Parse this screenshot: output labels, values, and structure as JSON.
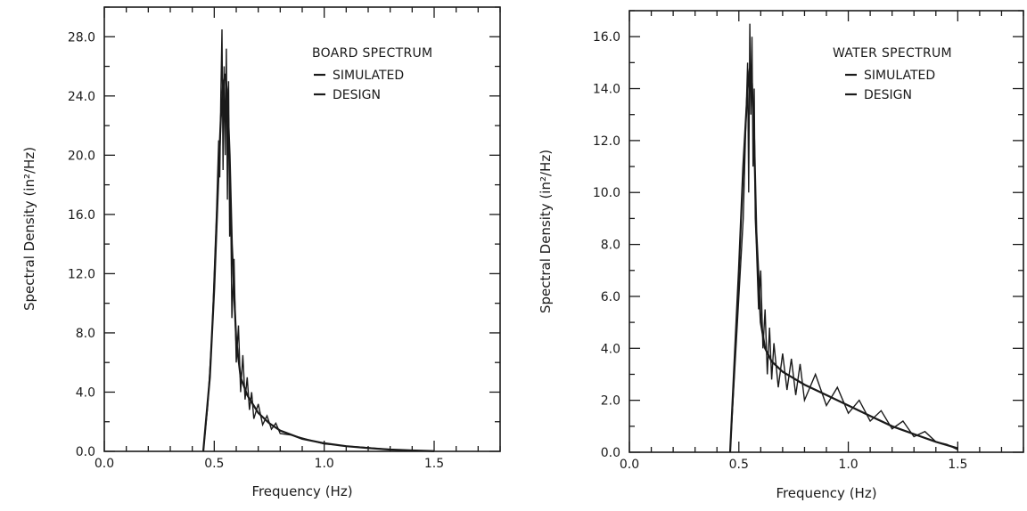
{
  "chart_data": [
    {
      "type": "line",
      "title": "BOARD SPECTRUM",
      "xlabel": "Frequency (Hz)",
      "ylabel": "Spectral Density (in²/Hz)",
      "xlim": [
        0.0,
        1.8
      ],
      "ylim": [
        0.0,
        30.0
      ],
      "xticks": [
        0.0,
        0.5,
        1.0,
        1.5
      ],
      "xtick_labels": [
        "0.0",
        "0.5",
        "1.0",
        "1.5"
      ],
      "yticks": [
        0.0,
        4.0,
        8.0,
        12.0,
        16.0,
        20.0,
        24.0,
        28.0
      ],
      "ytick_labels": [
        "0.0",
        "4.0",
        "8.0",
        "12.0",
        "16.0",
        "20.0",
        "24.0",
        "28.0"
      ],
      "grid": false,
      "legend_position": "top-right",
      "series": [
        {
          "name": "SIMULATED",
          "x": [
            0.45,
            0.47,
            0.49,
            0.5,
            0.51,
            0.52,
            0.525,
            0.53,
            0.535,
            0.54,
            0.545,
            0.55,
            0.555,
            0.56,
            0.565,
            0.57,
            0.575,
            0.58,
            0.59,
            0.6,
            0.61,
            0.62,
            0.63,
            0.64,
            0.65,
            0.66,
            0.67,
            0.68,
            0.7,
            0.72,
            0.74,
            0.76,
            0.78,
            0.8,
            0.85,
            0.9,
            0.95,
            1.0,
            1.05,
            1.1,
            1.15,
            1.2,
            1.25,
            1.3,
            1.35,
            1.4,
            1.45,
            1.5
          ],
          "values": [
            0.0,
            3.0,
            8.0,
            12.0,
            16.0,
            21.0,
            18.5,
            24.0,
            28.5,
            19.0,
            26.0,
            20.0,
            27.2,
            17.0,
            25.0,
            14.5,
            16.5,
            9.0,
            13.0,
            6.0,
            8.5,
            4.0,
            6.5,
            3.5,
            5.0,
            2.8,
            4.0,
            2.2,
            3.2,
            1.8,
            2.4,
            1.5,
            1.9,
            1.2,
            1.1,
            0.9,
            0.7,
            0.5,
            0.45,
            0.35,
            0.3,
            0.25,
            0.18,
            0.12,
            0.08,
            0.05,
            0.03,
            0.0
          ]
        },
        {
          "name": "DESIGN",
          "x": [
            0.45,
            0.48,
            0.5,
            0.52,
            0.53,
            0.54,
            0.55,
            0.56,
            0.57,
            0.58,
            0.6,
            0.62,
            0.65,
            0.7,
            0.75,
            0.8,
            0.9,
            1.0,
            1.1,
            1.2,
            1.3,
            1.4,
            1.5
          ],
          "values": [
            0.0,
            5.0,
            11.0,
            19.0,
            22.5,
            24.8,
            25.5,
            24.0,
            20.0,
            14.0,
            7.5,
            5.0,
            3.8,
            2.6,
            1.9,
            1.4,
            0.85,
            0.55,
            0.35,
            0.22,
            0.12,
            0.06,
            0.02
          ]
        }
      ]
    },
    {
      "type": "line",
      "title": "WATER SPECTRUM",
      "xlabel": "Frequency (Hz)",
      "ylabel": "Spectral Density (in²/Hz)",
      "xlim": [
        0.0,
        1.8
      ],
      "ylim": [
        0.0,
        17.0
      ],
      "xticks": [
        0.0,
        0.5,
        1.0,
        1.5
      ],
      "xtick_labels": [
        "0.0",
        "0.5",
        "1.0",
        "1.5"
      ],
      "yticks": [
        0.0,
        2.0,
        4.0,
        6.0,
        8.0,
        10.0,
        12.0,
        14.0,
        16.0
      ],
      "ytick_labels": [
        "0.0",
        "2.0",
        "4.0",
        "6.0",
        "8.0",
        "10.0",
        "12.0",
        "14.0",
        "16.0"
      ],
      "grid": false,
      "legend_position": "top-right",
      "series": [
        {
          "name": "SIMULATED",
          "x": [
            0.46,
            0.48,
            0.5,
            0.52,
            0.53,
            0.54,
            0.545,
            0.55,
            0.555,
            0.56,
            0.565,
            0.57,
            0.575,
            0.58,
            0.59,
            0.6,
            0.61,
            0.62,
            0.63,
            0.64,
            0.65,
            0.66,
            0.68,
            0.7,
            0.72,
            0.74,
            0.76,
            0.78,
            0.8,
            0.85,
            0.9,
            0.95,
            1.0,
            1.05,
            1.1,
            1.15,
            1.2,
            1.25,
            1.3,
            1.35,
            1.4,
            1.45,
            1.5
          ],
          "values": [
            0.0,
            3.0,
            6.0,
            9.0,
            12.0,
            15.0,
            10.0,
            16.5,
            13.0,
            16.0,
            11.0,
            14.0,
            9.0,
            8.0,
            5.5,
            7.0,
            4.0,
            5.5,
            3.0,
            4.8,
            2.8,
            4.2,
            2.5,
            3.8,
            2.4,
            3.6,
            2.2,
            3.4,
            2.0,
            3.0,
            1.8,
            2.5,
            1.5,
            2.0,
            1.2,
            1.6,
            0.9,
            1.2,
            0.6,
            0.8,
            0.4,
            0.3,
            0.1
          ]
        },
        {
          "name": "DESIGN",
          "x": [
            0.46,
            0.5,
            0.52,
            0.54,
            0.55,
            0.56,
            0.57,
            0.58,
            0.6,
            0.62,
            0.65,
            0.7,
            0.8,
            0.9,
            1.0,
            1.1,
            1.2,
            1.3,
            1.4,
            1.5
          ],
          "values": [
            0.0,
            7.0,
            11.0,
            14.0,
            14.8,
            14.2,
            12.0,
            8.5,
            5.0,
            4.0,
            3.5,
            3.1,
            2.6,
            2.2,
            1.8,
            1.4,
            1.0,
            0.7,
            0.4,
            0.15
          ]
        }
      ]
    }
  ]
}
